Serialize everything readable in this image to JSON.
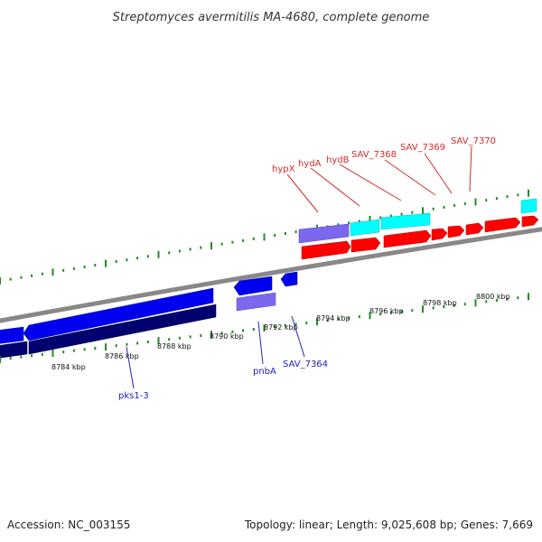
{
  "title": "Streptomyces avermitilis MA-4680, complete genome",
  "footer": {
    "accession": "Accession: NC_003155",
    "stats": "Topology: linear; Length: 9,025,608 bp; Genes: 7,669"
  },
  "scale_labels": [
    "8784 kbp",
    "8786 kbp",
    "8788 kbp",
    "8790 kbp",
    "8792 kbp",
    "8794 kbp",
    "8796 kbp",
    "8798 kbp",
    "8800 kbp"
  ],
  "top_gene_labels": [
    "hypX",
    "hydA",
    "hydB",
    "SAV_7368",
    "SAV_7369",
    "SAV_7370"
  ],
  "bottom_gene_labels": [
    "pks1-3",
    "pnbA",
    "SAV_7364"
  ],
  "colors": {
    "forward": "#ff0000",
    "reverse": "#0000ee",
    "reverse_dark": "#00006e",
    "rna": "#00ffff",
    "lavender": "#7b68ee",
    "tick": "#228b22",
    "backbone": "#888888",
    "top_label": "#d42a2a",
    "bottom_label": "#2222bb"
  }
}
